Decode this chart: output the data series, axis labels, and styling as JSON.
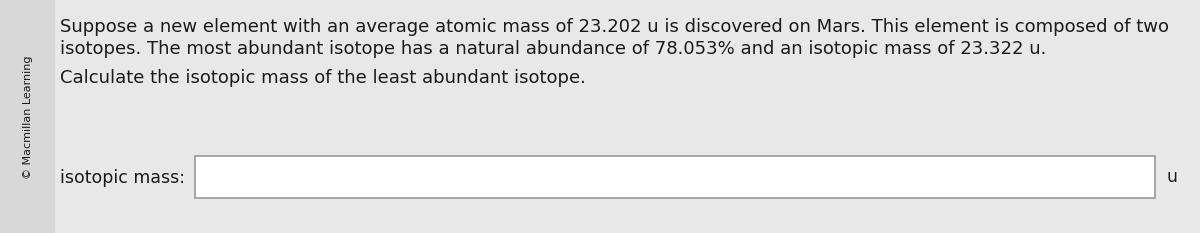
{
  "bg_color": "#e8e8e8",
  "content_bg": "#ebebeb",
  "copyright_text": "© Macmillan Learning",
  "line1": "Suppose a new element with an average atomic mass of 23.202 u is discovered on Mars. This element is composed of two",
  "line2": "isotopes. The most abundant isotope has a natural abundance of 78.053% and an isotopic mass of 23.322 u.",
  "line3": "Calculate the isotopic mass of the least abundant isotope.",
  "label_text": "isotopic mass:",
  "unit_text": "u",
  "input_box_color": "#ffffff",
  "input_box_border": "#999999",
  "text_color": "#1a1a1a",
  "font_size_main": 13.0,
  "font_size_label": 12.5,
  "font_size_copyright": 8.0
}
